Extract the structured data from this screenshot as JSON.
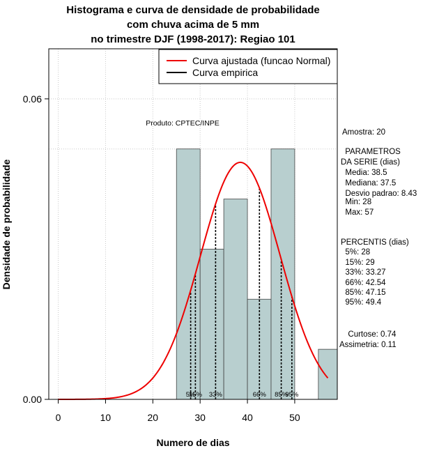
{
  "chart_data": {
    "type": "bar",
    "title": [
      "Histograma e curva de densidade de probabilidade",
      "com chuva acima de 5 mm",
      "no trimestre DJF (1998-2017): Regiao 101"
    ],
    "xlabel": "Numero de dias",
    "ylabel": "Densidade de probabilidade",
    "xlim": [
      -2,
      59
    ],
    "ylim": [
      0,
      0.07
    ],
    "x_ticks": [
      0,
      10,
      20,
      30,
      40,
      50
    ],
    "y_ticks": [
      0.0,
      0.06
    ],
    "y_tick_labels": [
      "0.00",
      "0.06"
    ],
    "grid": true,
    "bins": [
      {
        "x0": 25,
        "x1": 30,
        "density": 0.05
      },
      {
        "x0": 30,
        "x1": 35,
        "density": 0.03
      },
      {
        "x0": 35,
        "x1": 40,
        "density": 0.04
      },
      {
        "x0": 40,
        "x1": 45,
        "density": 0.02
      },
      {
        "x0": 45,
        "x1": 50,
        "density": 0.05
      },
      {
        "x0": 50,
        "x1": 55,
        "density": 0.0
      },
      {
        "x0": 55,
        "x1": 60,
        "density": 0.01
      }
    ],
    "normal_fit": {
      "mean": 38.5,
      "sd": 8.43,
      "x_from": 0,
      "x_to": 57
    },
    "percentiles": [
      {
        "label": "5%",
        "value": 28
      },
      {
        "label": "15%",
        "value": 29
      },
      {
        "label": "33%",
        "value": 33.27
      },
      {
        "label": "66%",
        "value": 42.54
      },
      {
        "label": "85%",
        "value": 47.15
      },
      {
        "label": "95%",
        "value": 49.4
      }
    ],
    "legend": {
      "position": "top-right",
      "entries": [
        {
          "label": "Curva ajustada (funcao Normal)",
          "color": "#ee0000"
        },
        {
          "label": "Curva empirica",
          "color": "#000000"
        }
      ]
    },
    "annotation": "Produto: CPTEC/INPE",
    "colors": {
      "bar_fill": "#b8cfcf",
      "curve": "#ee0000",
      "grid": "#c8c8c8"
    }
  },
  "stats_panel": {
    "amostra": "Amostra: 20",
    "param_title_1": " PARAMETROS",
    "param_title_2": "DA SERIE (dias)",
    "media": "  Media: 38.5",
    "mediana": "  Mediana: 37.5",
    "desvio": "  Desvio padrao: 8.43",
    "min": "  Min: 28",
    "max": "  Max: 57",
    "perc_title": "PERCENTIS (dias)",
    "p5": "  5%: 28",
    "p15": "  15%: 29",
    "p33": "  33%: 33.27",
    "p66": "  66%: 42.54",
    "p85": "  85%: 47.15",
    "p95": "  95%: 49.4",
    "curtose": "  Curtose: 0.74",
    "assimetria": "Assimetria: 0.11"
  }
}
